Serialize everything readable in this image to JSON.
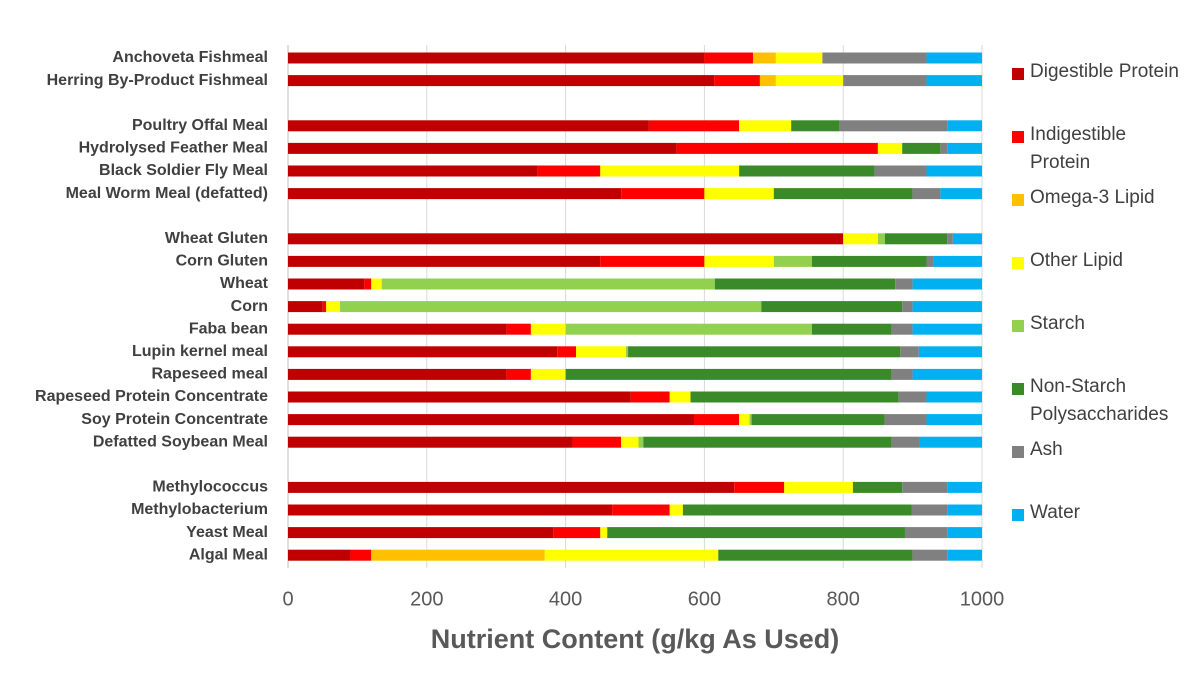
{
  "chart_data": {
    "type": "stacked_bar_horizontal",
    "xlabel": "Nutrient Content (g/kg As Used)",
    "categories": [
      "Anchoveta Fishmeal",
      "Herring By-Product Fishmeal",
      null,
      "Poultry Offal Meal",
      "Hydrolysed Feather Meal",
      "Black Soldier Fly Meal",
      "Meal Worm Meal (defatted)",
      null,
      "Wheat Gluten",
      "Corn Gluten",
      "Wheat",
      "Corn",
      "Faba bean",
      "Lupin kernel meal",
      "Rapeseed meal",
      "Rapeseed Protein Concentrate",
      "Soy Protein Concentrate",
      "Defatted Soybean Meal",
      null,
      "Methylococcus",
      "Methylobacterium",
      "Yeast Meal",
      "Algal Meal"
    ],
    "series": [
      {
        "name": "Digestible Protein",
        "color": "#c00000",
        "values": [
          600,
          614,
          null,
          520,
          560,
          360,
          480,
          null,
          800,
          450,
          110,
          50,
          315,
          388,
          315,
          494,
          585,
          410,
          null,
          643,
          467,
          382,
          90
        ]
      },
      {
        "name": "Indigestible Protein",
        "color": "#ff0000",
        "values": [
          70,
          66,
          null,
          130,
          290,
          90,
          120,
          null,
          0,
          150,
          10,
          5,
          35,
          27,
          35,
          56,
          65,
          70,
          null,
          72,
          83,
          68,
          30
        ]
      },
      {
        "name": "Omega-3 Lipid",
        "color": "#ffc000",
        "values": [
          33,
          23,
          null,
          0,
          0,
          0,
          0,
          null,
          0,
          0,
          0,
          0,
          0,
          0,
          0,
          0,
          0,
          0,
          null,
          0,
          0,
          0,
          250
        ]
      },
      {
        "name": "Other Lipid",
        "color": "#ffff00",
        "values": [
          67,
          97,
          null,
          75,
          35,
          200,
          100,
          null,
          50,
          100,
          15,
          20,
          50,
          72,
          50,
          30,
          15,
          25,
          null,
          99,
          19,
          10,
          250
        ]
      },
      {
        "name": "Starch",
        "color": "#92d050",
        "values": [
          0,
          0,
          null,
          0,
          0,
          0,
          0,
          null,
          10,
          55,
          480,
          607,
          355,
          3,
          0,
          0,
          3,
          7,
          null,
          0,
          0,
          0,
          0
        ]
      },
      {
        "name": "Non-Starch Polysaccharides",
        "color": "#3a8a2a",
        "values": [
          0,
          0,
          null,
          70,
          55,
          195,
          200,
          null,
          90,
          165,
          260,
          203,
          115,
          392,
          470,
          300,
          192,
          358,
          null,
          71,
          330,
          429,
          280
        ]
      },
      {
        "name": "Ash",
        "color": "#808080",
        "values": [
          150,
          120,
          null,
          155,
          10,
          75,
          40,
          null,
          8,
          10,
          25,
          15,
          30,
          27,
          30,
          40,
          60,
          40,
          null,
          65,
          51,
          61,
          50
        ]
      },
      {
        "name": "Water",
        "color": "#00b0f0",
        "values": [
          80,
          80,
          null,
          50,
          50,
          80,
          60,
          null,
          42,
          70,
          100,
          100,
          100,
          91,
          100,
          80,
          80,
          90,
          null,
          50,
          50,
          50,
          50
        ]
      }
    ],
    "xlim": [
      0,
      1000
    ],
    "xticks": [
      0,
      200,
      400,
      600,
      800,
      1000
    ],
    "grid": true,
    "legend": "right"
  }
}
